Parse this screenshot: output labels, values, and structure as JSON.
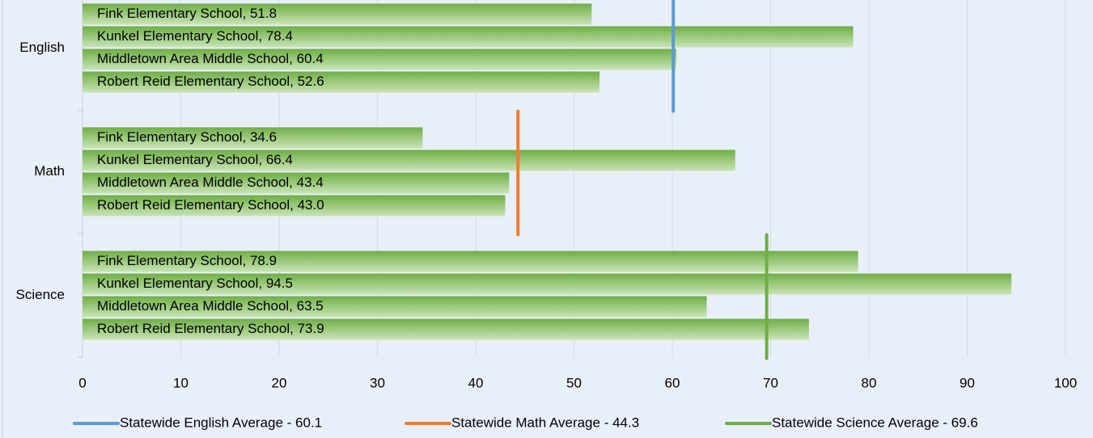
{
  "chart_data": {
    "type": "bar",
    "orientation": "horizontal",
    "categories": [
      "English",
      "Math",
      "Science"
    ],
    "series": [
      {
        "name": "Fink Elementary School",
        "values": [
          51.8,
          34.6,
          78.9
        ],
        "value_labels": [
          "Fink Elementary School, 51.8",
          "Fink Elementary School, 34.6",
          "Fink Elementary School, 78.9"
        ]
      },
      {
        "name": "Kunkel Elementary School",
        "values": [
          78.4,
          66.4,
          94.5
        ],
        "value_labels": [
          "Kunkel Elementary School, 78.4",
          "Kunkel Elementary School, 66.4",
          "Kunkel Elementary School, 94.5"
        ]
      },
      {
        "name": "Middletown Area Middle School",
        "values": [
          60.4,
          43.4,
          63.5
        ],
        "value_labels": [
          "Middletown Area Middle School, 60.4",
          "Middletown Area Middle School, 43.4",
          "Middletown Area Middle School, 63.5"
        ]
      },
      {
        "name": "Robert Reid Elementary School",
        "values": [
          52.6,
          43.0,
          73.9
        ],
        "value_labels": [
          "Robert Reid Elementary School, 52.6",
          "Robert Reid Elementary School, 43.0",
          "Robert Reid Elementary School, 73.9"
        ]
      }
    ],
    "color": "#70ad47",
    "reference_lines": [
      {
        "name": "Statewide English Average - 60.1",
        "value": 60.1,
        "category": 0,
        "color": "#5b9bd5"
      },
      {
        "name": "Statewide Math Average - 44.3",
        "value": 44.3,
        "category": 1,
        "color": "#ed7d31"
      },
      {
        "name": "Statewide Science Average - 69.6",
        "value": 69.6,
        "category": 2,
        "color": "#70ad47"
      }
    ],
    "xlim": [
      0,
      100
    ],
    "xticks": [
      0,
      10,
      20,
      30,
      40,
      50,
      60,
      70,
      80,
      90,
      100
    ],
    "grid": true,
    "legend": "bottom"
  }
}
